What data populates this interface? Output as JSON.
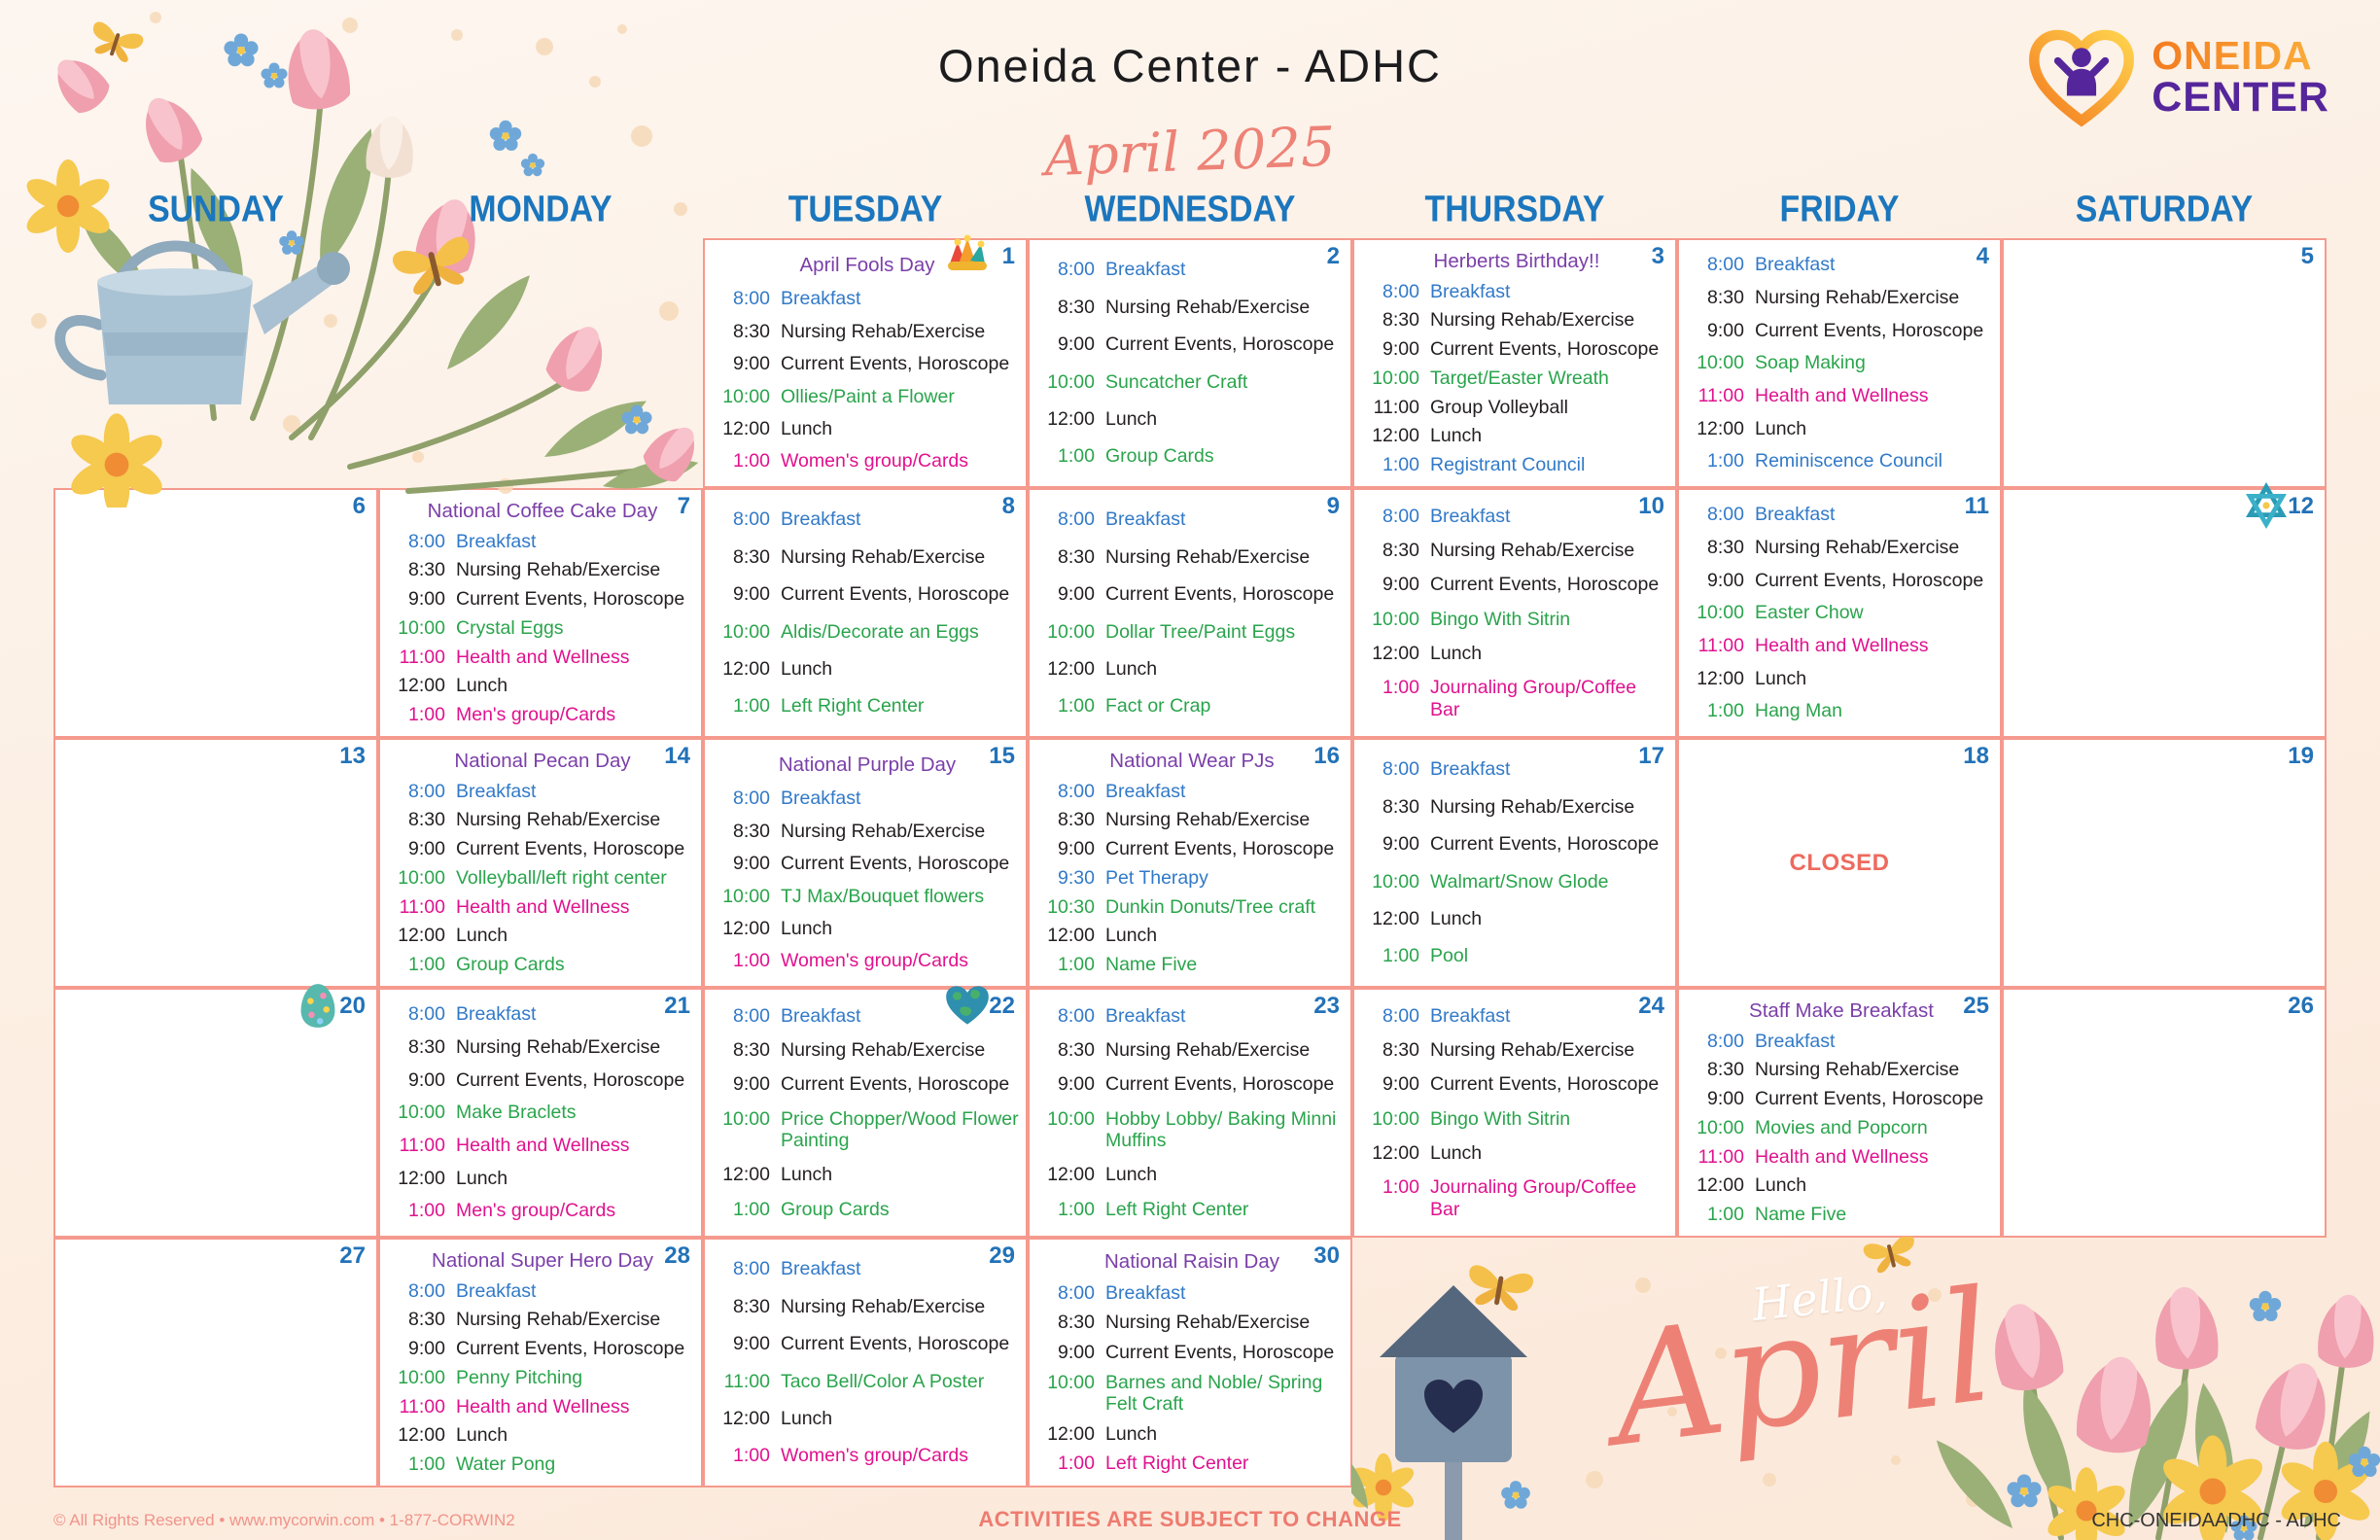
{
  "header": {
    "title": "Oneida Center - ADHC",
    "month_script": "April 2025",
    "logo": {
      "line1": "ONEIDA",
      "line2": "CENTER"
    }
  },
  "day_headers": [
    "SUNDAY",
    "MONDAY",
    "TUESDAY",
    "WEDNESDAY",
    "THURSDAY",
    "FRIDAY",
    "SATURDAY"
  ],
  "banner": {
    "hello": "Hello,",
    "april": "April"
  },
  "footer": {
    "left": "© All Rights Reserved • www.mycorwin.com • 1-877-CORWIN2",
    "center": "ACTIVITIES ARE SUBJECT TO CHANGE",
    "right": "CHC-ONEIDAADHC - ADHC"
  },
  "colors": {
    "blue": "#3179c8",
    "black": "#231f20",
    "green": "#2aa44c",
    "magenta": "#e0128e",
    "purple": "#7b3fa8",
    "coral": "#ee6a5e",
    "grid_border": "#f59a8e",
    "date_blue": "#2272b8",
    "header_blue": "#1b76bd"
  },
  "weeks": [
    [
      null,
      null,
      {
        "date": "1",
        "icon": "jester-hat-icon",
        "title": "April Fools Day",
        "events": [
          [
            "8:00",
            "Breakfast",
            "blue"
          ],
          [
            "8:30",
            "Nursing Rehab/Exercise",
            "black"
          ],
          [
            "9:00",
            "Current Events, Horoscope",
            "black"
          ],
          [
            "10:00",
            "Ollies/Paint a Flower",
            "green"
          ],
          [
            "12:00",
            "Lunch",
            "black"
          ],
          [
            "1:00",
            "Women's group/Cards",
            "magenta"
          ]
        ]
      },
      {
        "date": "2",
        "events": [
          [
            "8:00",
            "Breakfast",
            "blue"
          ],
          [
            "8:30",
            "Nursing Rehab/Exercise",
            "black"
          ],
          [
            "9:00",
            "Current Events, Horoscope",
            "black"
          ],
          [
            "10:00",
            "Suncatcher Craft",
            "green"
          ],
          [
            "12:00",
            "Lunch",
            "black"
          ],
          [
            "1:00",
            "Group Cards",
            "green"
          ]
        ]
      },
      {
        "date": "3",
        "title": "Herberts Birthday!!",
        "events": [
          [
            "8:00",
            "Breakfast",
            "blue"
          ],
          [
            "8:30",
            "Nursing Rehab/Exercise",
            "black"
          ],
          [
            "9:00",
            "Current Events, Horoscope",
            "black"
          ],
          [
            "10:00",
            "Target/Easter Wreath",
            "green"
          ],
          [
            "11:00",
            "Group Volleyball",
            "black"
          ],
          [
            "12:00",
            "Lunch",
            "black"
          ],
          [
            "1:00",
            "Registrant Council",
            "blue"
          ]
        ]
      },
      {
        "date": "4",
        "events": [
          [
            "8:00",
            "Breakfast",
            "blue"
          ],
          [
            "8:30",
            "Nursing Rehab/Exercise",
            "black"
          ],
          [
            "9:00",
            "Current Events, Horoscope",
            "black"
          ],
          [
            "10:00",
            "Soap Making",
            "green"
          ],
          [
            "11:00",
            "Health and Wellness",
            "magenta"
          ],
          [
            "12:00",
            "Lunch",
            "black"
          ],
          [
            "1:00",
            "Reminiscence Council",
            "blue"
          ]
        ]
      },
      {
        "date": "5",
        "events": []
      }
    ],
    [
      {
        "date": "6",
        "events": []
      },
      {
        "date": "7",
        "title": "National Coffee Cake Day",
        "events": [
          [
            "8:00",
            "Breakfast",
            "blue"
          ],
          [
            "8:30",
            "Nursing Rehab/Exercise",
            "black"
          ],
          [
            "9:00",
            "Current Events, Horoscope",
            "black"
          ],
          [
            "10:00",
            "Crystal Eggs",
            "green"
          ],
          [
            "11:00",
            "Health and Wellness",
            "magenta"
          ],
          [
            "12:00",
            "Lunch",
            "black"
          ],
          [
            "1:00",
            "Men's group/Cards",
            "magenta"
          ]
        ]
      },
      {
        "date": "8",
        "events": [
          [
            "8:00",
            "Breakfast",
            "blue"
          ],
          [
            "8:30",
            "Nursing Rehab/Exercise",
            "black"
          ],
          [
            "9:00",
            "Current Events, Horoscope",
            "black"
          ],
          [
            "10:00",
            "Aldis/Decorate an Eggs",
            "green"
          ],
          [
            "12:00",
            "Lunch",
            "black"
          ],
          [
            "1:00",
            "Left Right Center",
            "green"
          ]
        ]
      },
      {
        "date": "9",
        "events": [
          [
            "8:00",
            "Breakfast",
            "blue"
          ],
          [
            "8:30",
            "Nursing Rehab/Exercise",
            "black"
          ],
          [
            "9:00",
            "Current Events, Horoscope",
            "black"
          ],
          [
            "10:00",
            "Dollar Tree/Paint Eggs",
            "green"
          ],
          [
            "12:00",
            "Lunch",
            "black"
          ],
          [
            "1:00",
            "Fact or Crap",
            "green"
          ]
        ]
      },
      {
        "date": "10",
        "events": [
          [
            "8:00",
            "Breakfast",
            "blue"
          ],
          [
            "8:30",
            "Nursing Rehab/Exercise",
            "black"
          ],
          [
            "9:00",
            "Current Events, Horoscope",
            "black"
          ],
          [
            "10:00",
            "Bingo With Sitrin",
            "green"
          ],
          [
            "12:00",
            "Lunch",
            "black"
          ],
          [
            "1:00",
            "Journaling Group/Coffee Bar",
            "magenta"
          ]
        ]
      },
      {
        "date": "11",
        "events": [
          [
            "8:00",
            "Breakfast",
            "blue"
          ],
          [
            "8:30",
            "Nursing Rehab/Exercise",
            "black"
          ],
          [
            "9:00",
            "Current Events, Horoscope",
            "black"
          ],
          [
            "10:00",
            "Easter Chow",
            "green"
          ],
          [
            "11:00",
            "Health and Wellness",
            "magenta"
          ],
          [
            "12:00",
            "Lunch",
            "black"
          ],
          [
            "1:00",
            "Hang Man",
            "green"
          ]
        ]
      },
      {
        "date": "12",
        "icon": "star-of-david-icon",
        "events": []
      }
    ],
    [
      {
        "date": "13",
        "events": []
      },
      {
        "date": "14",
        "title": "National Pecan Day",
        "events": [
          [
            "8:00",
            "Breakfast",
            "blue"
          ],
          [
            "8:30",
            "Nursing Rehab/Exercise",
            "black"
          ],
          [
            "9:00",
            "Current Events, Horoscope",
            "black"
          ],
          [
            "10:00",
            "Volleyball/left right center",
            "green"
          ],
          [
            "11:00",
            "Health and Wellness",
            "magenta"
          ],
          [
            "12:00",
            "Lunch",
            "black"
          ],
          [
            "1:00",
            "Group Cards",
            "green"
          ]
        ]
      },
      {
        "date": "15",
        "title": "National Purple Day",
        "events": [
          [
            "8:00",
            "Breakfast",
            "blue"
          ],
          [
            "8:30",
            "Nursing Rehab/Exercise",
            "black"
          ],
          [
            "9:00",
            "Current Events, Horoscope",
            "black"
          ],
          [
            "10:00",
            "TJ Max/Bouquet flowers",
            "green"
          ],
          [
            "12:00",
            "Lunch",
            "black"
          ],
          [
            "1:00",
            "Women's group/Cards",
            "magenta"
          ]
        ]
      },
      {
        "date": "16",
        "title": "National Wear PJs",
        "events": [
          [
            "8:00",
            "Breakfast",
            "blue"
          ],
          [
            "8:30",
            "Nursing Rehab/Exercise",
            "black"
          ],
          [
            "9:00",
            "Current Events, Horoscope",
            "black"
          ],
          [
            "9:30",
            "Pet Therapy",
            "blue"
          ],
          [
            "10:30",
            "Dunkin Donuts/Tree craft",
            "green"
          ],
          [
            "12:00",
            "Lunch",
            "black"
          ],
          [
            "1:00",
            "Name Five",
            "green"
          ]
        ]
      },
      {
        "date": "17",
        "events": [
          [
            "8:00",
            "Breakfast",
            "blue"
          ],
          [
            "8:30",
            "Nursing Rehab/Exercise",
            "black"
          ],
          [
            "9:00",
            "Current Events, Horoscope",
            "black"
          ],
          [
            "10:00",
            "Walmart/Snow Glode",
            "green"
          ],
          [
            "12:00",
            "Lunch",
            "black"
          ],
          [
            "1:00",
            "Pool",
            "green"
          ]
        ]
      },
      {
        "date": "18",
        "closed": "CLOSED"
      },
      {
        "date": "19",
        "events": []
      }
    ],
    [
      {
        "date": "20",
        "icon": "easter-egg-icon",
        "events": []
      },
      {
        "date": "21",
        "events": [
          [
            "8:00",
            "Breakfast",
            "blue"
          ],
          [
            "8:30",
            "Nursing Rehab/Exercise",
            "black"
          ],
          [
            "9:00",
            "Current Events, Horoscope",
            "black"
          ],
          [
            "10:00",
            "Make Braclets",
            "green"
          ],
          [
            "11:00",
            "Health and Wellness",
            "magenta"
          ],
          [
            "12:00",
            "Lunch",
            "black"
          ],
          [
            "1:00",
            "Men's group/Cards",
            "magenta"
          ]
        ]
      },
      {
        "date": "22",
        "icon": "earth-heart-icon",
        "events": [
          [
            "8:00",
            "Breakfast",
            "blue"
          ],
          [
            "8:30",
            "Nursing Rehab/Exercise",
            "black"
          ],
          [
            "9:00",
            "Current Events, Horoscope",
            "black"
          ],
          [
            "10:00",
            "Price Chopper/Wood Flower Painting",
            "green"
          ],
          [
            "12:00",
            "Lunch",
            "black"
          ],
          [
            "1:00",
            "Group Cards",
            "green"
          ]
        ]
      },
      {
        "date": "23",
        "events": [
          [
            "8:00",
            "Breakfast",
            "blue"
          ],
          [
            "8:30",
            "Nursing Rehab/Exercise",
            "black"
          ],
          [
            "9:00",
            "Current Events, Horoscope",
            "black"
          ],
          [
            "10:00",
            "Hobby Lobby/ Baking Minni Muffins",
            "green"
          ],
          [
            "12:00",
            "Lunch",
            "black"
          ],
          [
            "1:00",
            "Left Right Center",
            "green"
          ]
        ]
      },
      {
        "date": "24",
        "events": [
          [
            "8:00",
            "Breakfast",
            "blue"
          ],
          [
            "8:30",
            "Nursing Rehab/Exercise",
            "black"
          ],
          [
            "9:00",
            "Current Events, Horoscope",
            "black"
          ],
          [
            "10:00",
            "Bingo With Sitrin",
            "green"
          ],
          [
            "12:00",
            "Lunch",
            "black"
          ],
          [
            "1:00",
            "Journaling Group/Coffee Bar",
            "magenta"
          ]
        ]
      },
      {
        "date": "25",
        "title": "Staff Make Breakfast",
        "events": [
          [
            "8:00",
            "Breakfast",
            "blue"
          ],
          [
            "8:30",
            "Nursing Rehab/Exercise",
            "black"
          ],
          [
            "9:00",
            "Current Events, Horoscope",
            "black"
          ],
          [
            "10:00",
            "Movies and Popcorn",
            "green"
          ],
          [
            "11:00",
            "Health and Wellness",
            "magenta"
          ],
          [
            "12:00",
            "Lunch",
            "black"
          ],
          [
            "1:00",
            "Name Five",
            "green"
          ]
        ]
      },
      {
        "date": "26",
        "events": []
      }
    ],
    [
      {
        "date": "27",
        "events": []
      },
      {
        "date": "28",
        "title": "National Super Hero Day",
        "events": [
          [
            "8:00",
            "Breakfast",
            "blue"
          ],
          [
            "8:30",
            "Nursing Rehab/Exercise",
            "black"
          ],
          [
            "9:00",
            "Current Events, Horoscope",
            "black"
          ],
          [
            "10:00",
            "Penny Pitching",
            "green"
          ],
          [
            "11:00",
            "Health and Wellness",
            "magenta"
          ],
          [
            "12:00",
            "Lunch",
            "black"
          ],
          [
            "1:00",
            "Water Pong",
            "green"
          ]
        ]
      },
      {
        "date": "29",
        "events": [
          [
            "8:00",
            "Breakfast",
            "blue"
          ],
          [
            "8:30",
            "Nursing Rehab/Exercise",
            "black"
          ],
          [
            "9:00",
            "Current Events, Horoscope",
            "black"
          ],
          [
            "11:00",
            "Taco Bell/Color A Poster",
            "green"
          ],
          [
            "12:00",
            "Lunch",
            "black"
          ],
          [
            "1:00",
            "Women's group/Cards",
            "magenta"
          ]
        ]
      },
      {
        "date": "30",
        "title": "National Raisin Day",
        "events": [
          [
            "8:00",
            "Breakfast",
            "blue"
          ],
          [
            "8:30",
            "Nursing Rehab/Exercise",
            "black"
          ],
          [
            "9:00",
            "Current Events, Horoscope",
            "black"
          ],
          [
            "10:00",
            "Barnes and Noble/ Spring Felt Craft",
            "green"
          ],
          [
            "12:00",
            "Lunch",
            "black"
          ],
          [
            "1:00",
            "Left Right Center",
            "magenta"
          ]
        ]
      },
      null,
      null,
      null
    ]
  ]
}
